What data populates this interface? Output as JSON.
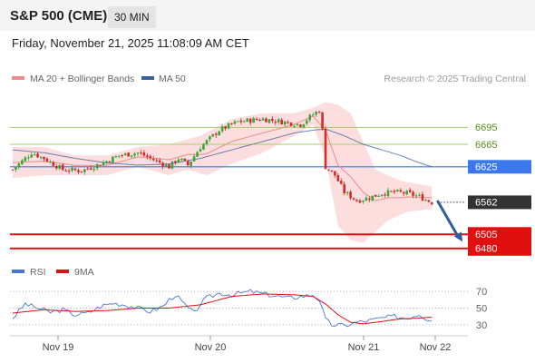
{
  "header": {
    "title": "S&P 500 (CME)",
    "timeframe": "30 MIN",
    "datetime": "Friday, November 21, 2025 11:08:09 AM CET"
  },
  "colors": {
    "bull": "#3aa63a",
    "bear": "#d42a2a",
    "ma20": "#f08a8a",
    "band": "#fbd3d3",
    "ma50": "#3a5f9e",
    "support": "#e01010",
    "resistance": "#a6cd6a",
    "current": "#3b78ee",
    "price_tag": "#333333",
    "rsi": "#4a74d8",
    "rsi_ma": "#e01010",
    "arrow": "#2e5c9e"
  },
  "chart_data": [
    {
      "type": "candlestick",
      "title": "S&P 500 (CME)",
      "legend": [
        {
          "name": "MA 20 + Bollinger Bands",
          "color": "#f08a8a"
        },
        {
          "name": "MA 50",
          "color": "#3a5f9e"
        }
      ],
      "legend_placement": "top-left",
      "credit": "Research © 2025 Trading Central",
      "x_labels": [
        "Nov 19",
        "Nov 20",
        "Nov 21",
        "Nov 22"
      ],
      "ylim": [
        6470,
        6760
      ],
      "key_levels": [
        {
          "label": "6695",
          "value": 6695,
          "kind": "resistance"
        },
        {
          "label": "6665",
          "value": 6665,
          "kind": "resistance"
        },
        {
          "label": "6625",
          "value": 6625,
          "kind": "current"
        },
        {
          "label": "6562",
          "value": 6562,
          "kind": "last"
        },
        {
          "label": "6505",
          "value": 6505,
          "kind": "support"
        },
        {
          "label": "6480",
          "value": 6480,
          "kind": "support"
        }
      ],
      "close_anchors": [
        [
          0,
          6620
        ],
        [
          6,
          6650
        ],
        [
          10,
          6640
        ],
        [
          16,
          6620
        ],
        [
          22,
          6618
        ],
        [
          28,
          6630
        ],
        [
          34,
          6645
        ],
        [
          40,
          6650
        ],
        [
          46,
          6635
        ],
        [
          50,
          6625
        ],
        [
          53,
          6640
        ],
        [
          56,
          6628
        ],
        [
          60,
          6660
        ],
        [
          66,
          6690
        ],
        [
          72,
          6705
        ],
        [
          80,
          6710
        ],
        [
          86,
          6705
        ],
        [
          92,
          6700
        ],
        [
          96,
          6718
        ],
        [
          98,
          6725
        ],
        [
          99,
          6690
        ],
        [
          100,
          6625
        ],
        [
          103,
          6610
        ],
        [
          106,
          6580
        ],
        [
          110,
          6565
        ],
        [
          114,
          6570
        ],
        [
          118,
          6578
        ],
        [
          122,
          6580
        ],
        [
          126,
          6578
        ],
        [
          130,
          6572
        ],
        [
          133,
          6564
        ],
        [
          134,
          6562
        ]
      ],
      "bb_upper_anchors": [
        [
          0,
          6660
        ],
        [
          10,
          6660
        ],
        [
          20,
          6645
        ],
        [
          30,
          6645
        ],
        [
          40,
          6660
        ],
        [
          50,
          6665
        ],
        [
          60,
          6680
        ],
        [
          70,
          6710
        ],
        [
          80,
          6720
        ],
        [
          90,
          6720
        ],
        [
          96,
          6730
        ],
        [
          100,
          6740
        ],
        [
          104,
          6735
        ],
        [
          108,
          6720
        ],
        [
          112,
          6670
        ],
        [
          116,
          6620
        ],
        [
          124,
          6600
        ],
        [
          134,
          6590
        ]
      ],
      "bb_lower_anchors": [
        [
          0,
          6605
        ],
        [
          10,
          6610
        ],
        [
          20,
          6610
        ],
        [
          30,
          6610
        ],
        [
          40,
          6625
        ],
        [
          50,
          6610
        ],
        [
          56,
          6620
        ],
        [
          62,
          6610
        ],
        [
          70,
          6630
        ],
        [
          80,
          6650
        ],
        [
          90,
          6680
        ],
        [
          96,
          6700
        ],
        [
          100,
          6640
        ],
        [
          104,
          6520
        ],
        [
          108,
          6495
        ],
        [
          112,
          6490
        ],
        [
          116,
          6510
        ],
        [
          120,
          6530
        ],
        [
          126,
          6545
        ],
        [
          134,
          6550
        ]
      ],
      "ma50_anchors": [
        [
          0,
          6655
        ],
        [
          10,
          6650
        ],
        [
          20,
          6640
        ],
        [
          30,
          6632
        ],
        [
          40,
          6628
        ],
        [
          50,
          6630
        ],
        [
          60,
          6640
        ],
        [
          70,
          6655
        ],
        [
          80,
          6670
        ],
        [
          90,
          6685
        ],
        [
          96,
          6690
        ],
        [
          100,
          6692
        ],
        [
          106,
          6680
        ],
        [
          112,
          6665
        ],
        [
          118,
          6655
        ],
        [
          124,
          6645
        ],
        [
          130,
          6632
        ],
        [
          134,
          6625
        ]
      ],
      "forecast": {
        "from": 6565,
        "to": 6492
      }
    },
    {
      "type": "line",
      "title": "RSI",
      "legend": [
        {
          "name": "RSI",
          "color": "#4a74d8"
        },
        {
          "name": "9MA",
          "color": "#e01010"
        }
      ],
      "ylim": [
        20,
        80
      ],
      "y_ticks": [
        {
          "label": "70",
          "value": 70
        },
        {
          "label": "50",
          "value": 50
        },
        {
          "label": "30",
          "value": 30
        }
      ],
      "rsi_anchors": [
        [
          0,
          38
        ],
        [
          4,
          55
        ],
        [
          8,
          50
        ],
        [
          12,
          45
        ],
        [
          16,
          48
        ],
        [
          20,
          42
        ],
        [
          24,
          44
        ],
        [
          28,
          52
        ],
        [
          32,
          56
        ],
        [
          36,
          54
        ],
        [
          40,
          50
        ],
        [
          44,
          46
        ],
        [
          48,
          52
        ],
        [
          50,
          60
        ],
        [
          52,
          66
        ],
        [
          54,
          58
        ],
        [
          56,
          50
        ],
        [
          58,
          44
        ],
        [
          60,
          55
        ],
        [
          62,
          62
        ],
        [
          66,
          68
        ],
        [
          70,
          66
        ],
        [
          76,
          70
        ],
        [
          82,
          66
        ],
        [
          88,
          62
        ],
        [
          92,
          64
        ],
        [
          96,
          66
        ],
        [
          98,
          60
        ],
        [
          100,
          36
        ],
        [
          102,
          30
        ],
        [
          106,
          29
        ],
        [
          110,
          33
        ],
        [
          114,
          35
        ],
        [
          118,
          38
        ],
        [
          122,
          40
        ],
        [
          126,
          38
        ],
        [
          130,
          43
        ],
        [
          132,
          38
        ],
        [
          134,
          36
        ]
      ],
      "rsi_ma_anchors": [
        [
          0,
          44
        ],
        [
          10,
          48
        ],
        [
          20,
          46
        ],
        [
          30,
          47
        ],
        [
          40,
          50
        ],
        [
          50,
          50
        ],
        [
          60,
          54
        ],
        [
          70,
          64
        ],
        [
          80,
          67
        ],
        [
          90,
          66
        ],
        [
          96,
          64
        ],
        [
          100,
          55
        ],
        [
          104,
          42
        ],
        [
          108,
          33
        ],
        [
          112,
          31
        ],
        [
          118,
          34
        ],
        [
          124,
          37
        ],
        [
          130,
          38
        ],
        [
          134,
          39
        ]
      ]
    }
  ]
}
